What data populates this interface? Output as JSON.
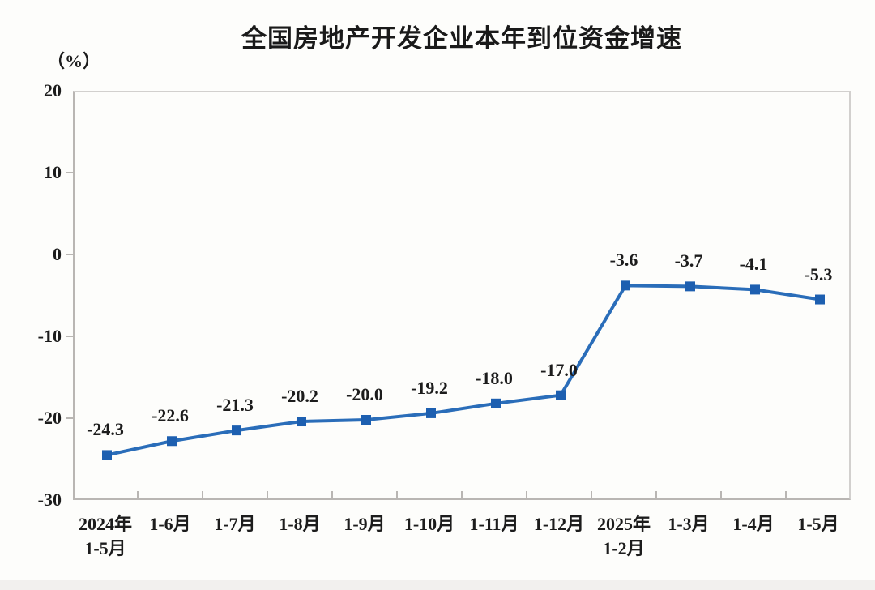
{
  "title": "全国房地产开发企业本年到位资金增速",
  "unit_label": "（%）",
  "colors": {
    "line": "#2a6db9",
    "marker": "#1d5fb0",
    "axis": "#b9b6b3",
    "text": "#1c1c1c",
    "title_text": "#1a1a1a",
    "background": "#fdfdfb",
    "bottom_strip": "#f2f0ee"
  },
  "chart_data": {
    "type": "line",
    "title": "全国房地产开发企业本年到位资金增速",
    "ylabel": "（%）",
    "categories": [
      [
        "2024年",
        "1-5月"
      ],
      [
        "1-6月"
      ],
      [
        "1-7月"
      ],
      [
        "1-8月"
      ],
      [
        "1-9月"
      ],
      [
        "1-10月"
      ],
      [
        "1-11月"
      ],
      [
        "1-12月"
      ],
      [
        "2025年",
        "1-2月"
      ],
      [
        "1-3月"
      ],
      [
        "1-4月"
      ],
      [
        "1-5月"
      ]
    ],
    "values": [
      -24.3,
      -22.6,
      -21.3,
      -20.2,
      -20.0,
      -19.2,
      -18.0,
      -17.0,
      -3.6,
      -3.7,
      -4.1,
      -5.3
    ],
    "value_labels": [
      "-24.3",
      "-22.6",
      "-21.3",
      "-20.2",
      "-20.0",
      "-19.2",
      "-18.0",
      "-17.0",
      "-3.6",
      "-3.7",
      "-4.1",
      "-5.3"
    ],
    "ylim": [
      -30,
      20
    ],
    "yticks": [
      20,
      10,
      0,
      -10,
      -20,
      -30
    ],
    "grid": false,
    "legend": "none",
    "marker": "square"
  }
}
